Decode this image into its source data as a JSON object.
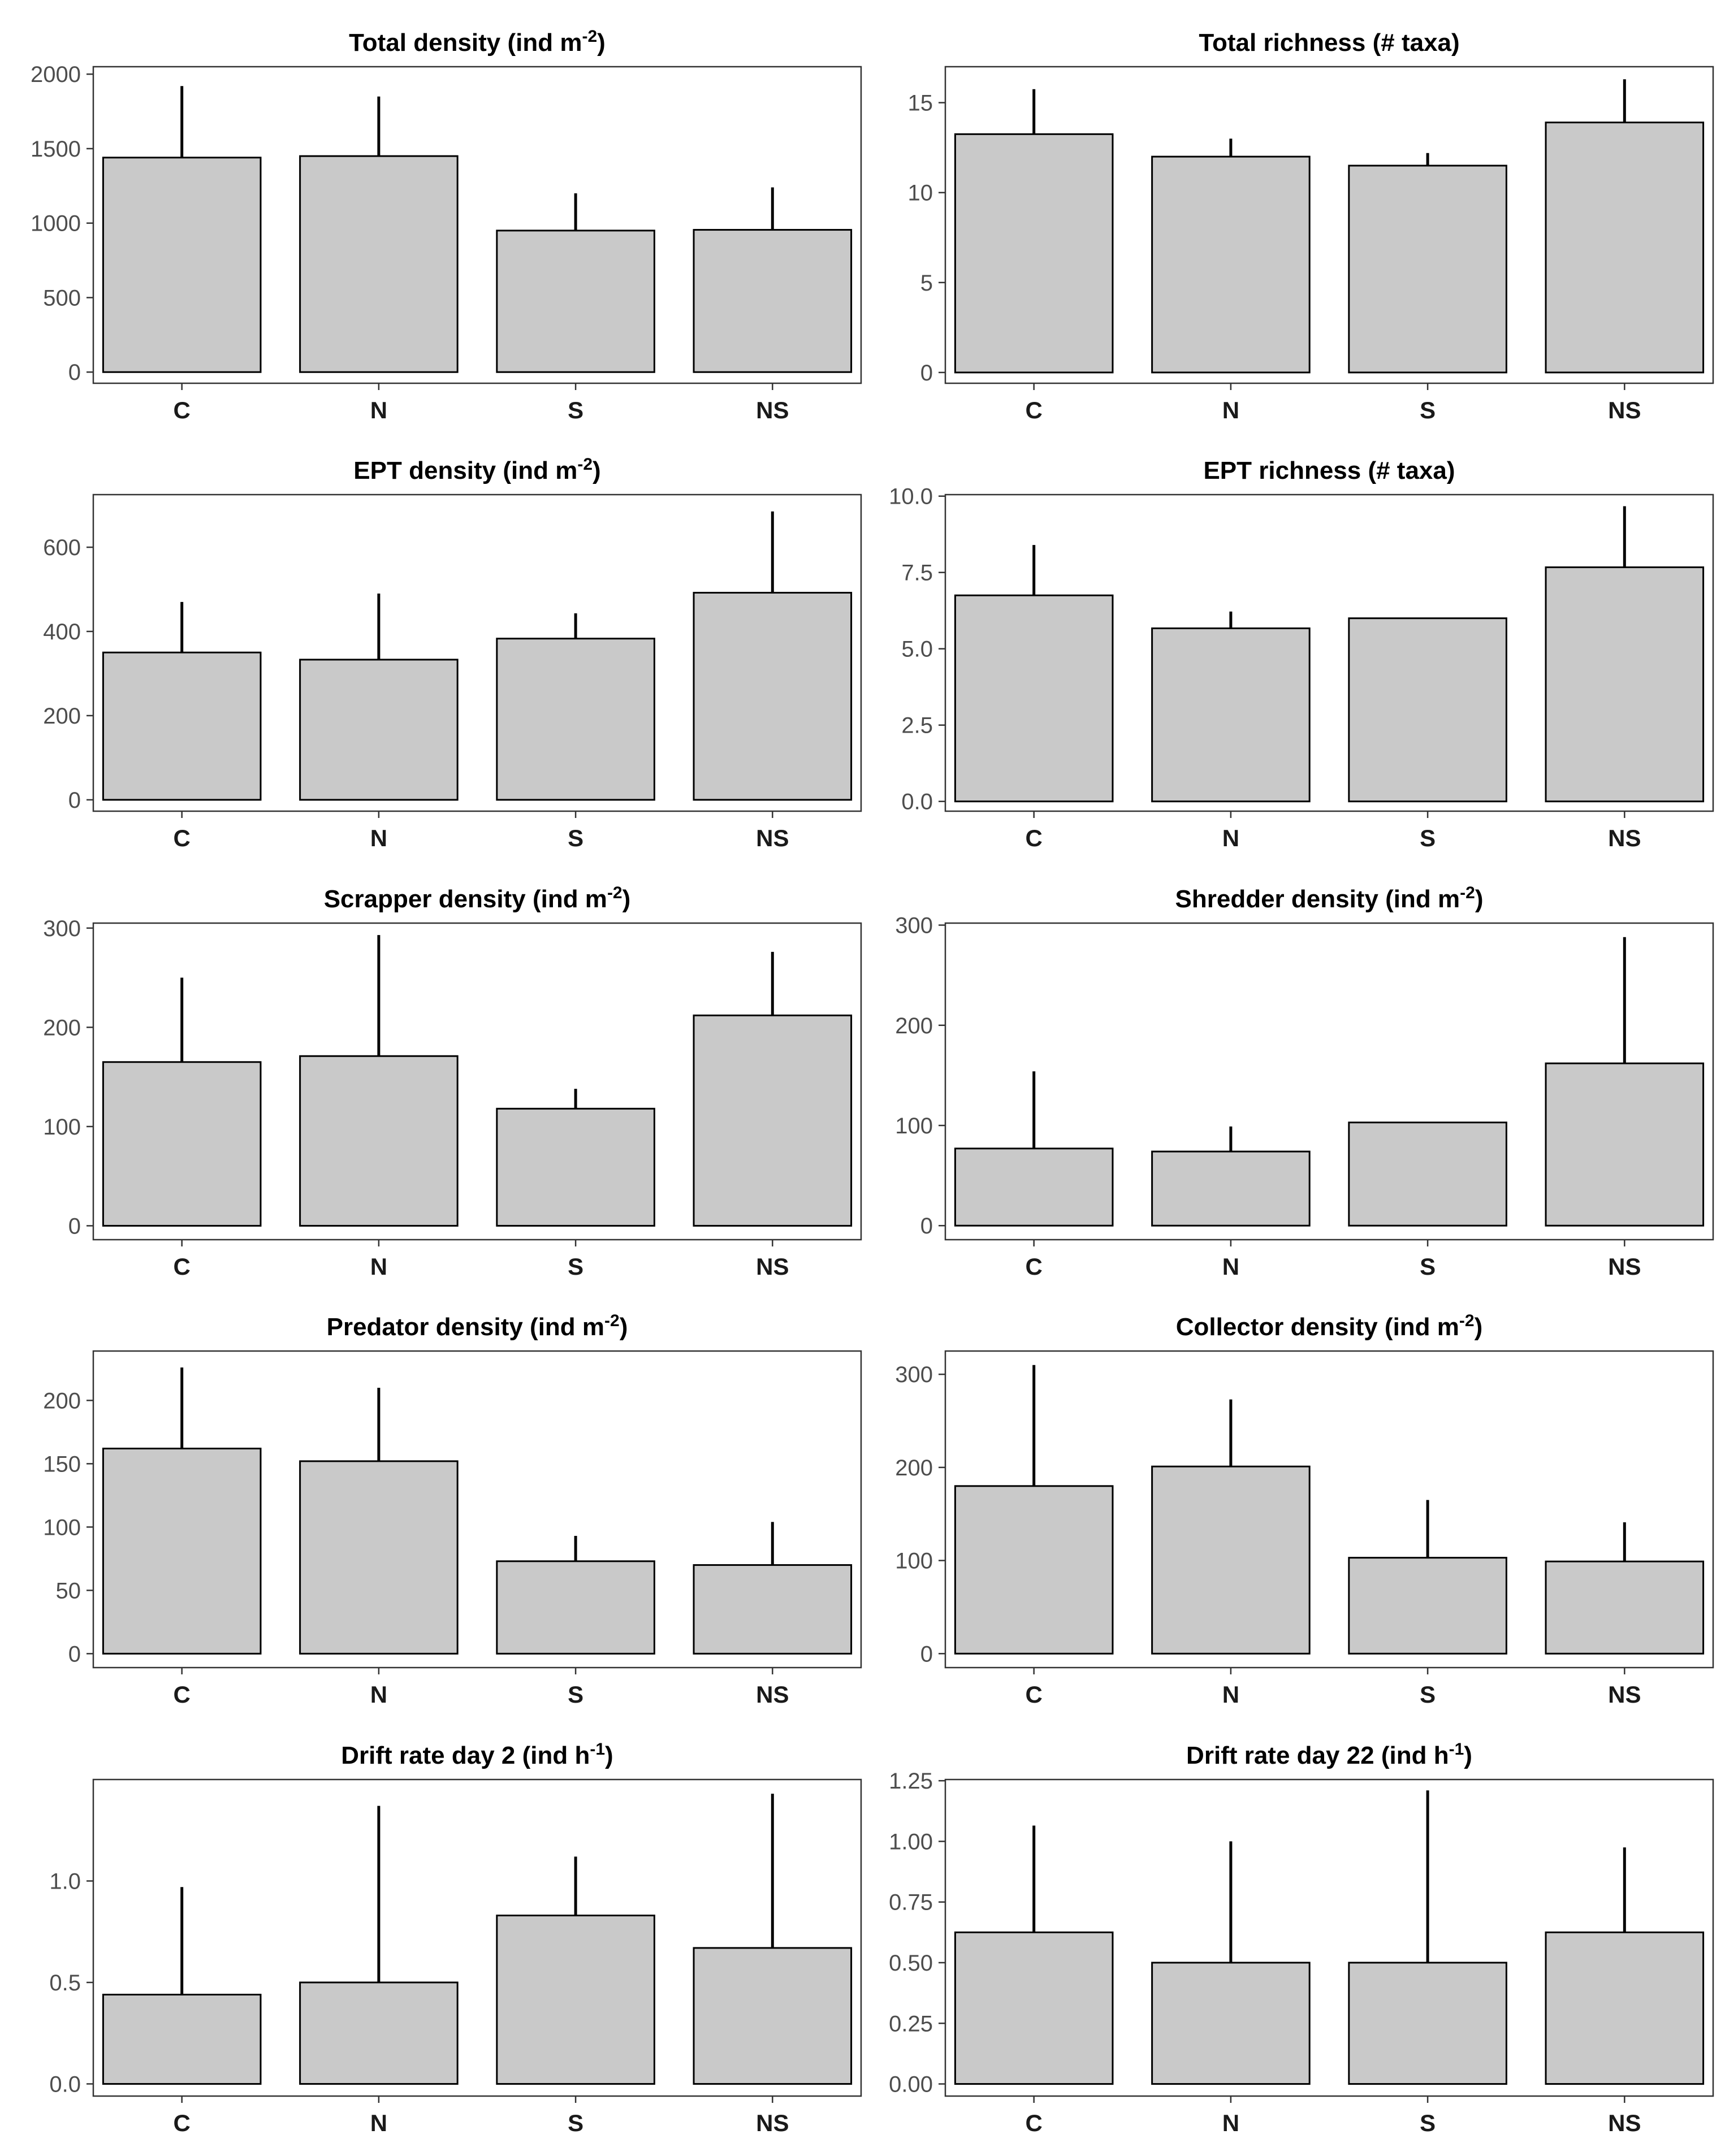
{
  "chart_data": [
    {
      "type": "bar",
      "title": "Total density (ind m",
      "title_sup": "-2",
      "title_suffix": ")",
      "categories": [
        "C",
        "N",
        "S",
        "NS"
      ],
      "values": [
        1440,
        1450,
        950,
        955
      ],
      "errors": [
        480,
        400,
        250,
        285
      ],
      "ylim": [
        -75,
        2050
      ],
      "yticks": [
        0,
        500,
        1000,
        1500,
        2000
      ],
      "ytick_labels": [
        "0",
        "500",
        "1000",
        "1500",
        "2000"
      ]
    },
    {
      "type": "bar",
      "title": "Total richness (# taxa)",
      "title_sup": "",
      "title_suffix": "",
      "categories": [
        "C",
        "N",
        "S",
        "NS"
      ],
      "values": [
        13.25,
        12.0,
        11.5,
        13.9
      ],
      "errors": [
        2.5,
        1.0,
        0.7,
        2.4
      ],
      "ylim": [
        -0.6,
        17.0
      ],
      "yticks": [
        0,
        5,
        10,
        15
      ],
      "ytick_labels": [
        "0",
        "5",
        "10",
        "15"
      ]
    },
    {
      "type": "bar",
      "title": "EPT density (ind m",
      "title_sup": "-2",
      "title_suffix": ")",
      "categories": [
        "C",
        "N",
        "S",
        "NS"
      ],
      "values": [
        350,
        333,
        383,
        492
      ],
      "errors": [
        120,
        157,
        60,
        193
      ],
      "ylim": [
        -27,
        725
      ],
      "yticks": [
        0,
        200,
        400,
        600
      ],
      "ytick_labels": [
        "0",
        "200",
        "400",
        "600"
      ]
    },
    {
      "type": "bar",
      "title": "EPT richness (# taxa)",
      "title_sup": "",
      "title_suffix": "",
      "categories": [
        "C",
        "N",
        "S",
        "NS"
      ],
      "values": [
        6.75,
        5.67,
        6.0,
        7.67
      ],
      "errors": [
        1.65,
        0.55,
        0,
        2.0
      ],
      "ylim": [
        -0.32,
        10.05
      ],
      "yticks": [
        0,
        2.5,
        5,
        7.5,
        10
      ],
      "ytick_labels": [
        "0.0",
        "2.5",
        "5.0",
        "7.5",
        "10.0"
      ]
    },
    {
      "type": "bar",
      "title": "Scrapper density (ind m",
      "title_sup": "-2",
      "title_suffix": ")",
      "categories": [
        "C",
        "N",
        "S",
        "NS"
      ],
      "values": [
        165,
        171,
        118,
        212
      ],
      "errors": [
        85,
        122,
        20,
        64
      ],
      "ylim": [
        -14,
        305
      ],
      "yticks": [
        0,
        100,
        200,
        300
      ],
      "ytick_labels": [
        "0",
        "100",
        "200",
        "300"
      ]
    },
    {
      "type": "bar",
      "title": "Shredder density (ind m",
      "title_sup": "-2",
      "title_suffix": ")",
      "categories": [
        "C",
        "N",
        "S",
        "NS"
      ],
      "values": [
        77,
        74,
        103,
        162
      ],
      "errors": [
        77,
        25,
        0,
        126
      ],
      "ylim": [
        -14,
        302
      ],
      "yticks": [
        0,
        100,
        200,
        300
      ],
      "ytick_labels": [
        "0",
        "100",
        "200",
        "300"
      ]
    },
    {
      "type": "bar",
      "title": "Predator density (ind m",
      "title_sup": "-2",
      "title_suffix": ")",
      "categories": [
        "C",
        "N",
        "S",
        "NS"
      ],
      "values": [
        162,
        152,
        73,
        70
      ],
      "errors": [
        64,
        58,
        20,
        34
      ],
      "ylim": [
        -11,
        239
      ],
      "yticks": [
        0,
        50,
        100,
        150,
        200
      ],
      "ytick_labels": [
        "0",
        "50",
        "100",
        "150",
        "200"
      ]
    },
    {
      "type": "bar",
      "title": "Collector density (ind m",
      "title_sup": "-2",
      "title_suffix": ")",
      "categories": [
        "C",
        "N",
        "S",
        "NS"
      ],
      "values": [
        180,
        201,
        103,
        99
      ],
      "errors": [
        130,
        72,
        62,
        42
      ],
      "ylim": [
        -15,
        325
      ],
      "yticks": [
        0,
        100,
        200,
        300
      ],
      "ytick_labels": [
        "0",
        "100",
        "200",
        "300"
      ]
    },
    {
      "type": "bar",
      "title": "Drift rate day 2 (ind h",
      "title_sup": "-1",
      "title_suffix": ")",
      "categories": [
        "C",
        "N",
        "S",
        "NS"
      ],
      "values": [
        0.44,
        0.5,
        0.83,
        0.67
      ],
      "errors": [
        0.53,
        0.87,
        0.29,
        0.76
      ],
      "ylim": [
        -0.06,
        1.5
      ],
      "yticks": [
        0,
        0.5,
        1.0
      ],
      "ytick_labels": [
        "0.0",
        "0.5",
        "1.0"
      ]
    },
    {
      "type": "bar",
      "title": "Drift rate day 22 (ind h",
      "title_sup": "-1",
      "title_suffix": ")",
      "categories": [
        "C",
        "N",
        "S",
        "NS"
      ],
      "values": [
        0.625,
        0.5,
        0.5,
        0.625
      ],
      "errors": [
        0.44,
        0.5,
        0.71,
        0.35
      ],
      "ylim": [
        -0.05,
        1.255
      ],
      "yticks": [
        0,
        0.25,
        0.5,
        0.75,
        1.0,
        1.25
      ],
      "ytick_labels": [
        "0.00",
        "0.25",
        "0.50",
        "0.75",
        "1.00",
        "1.25"
      ]
    }
  ]
}
